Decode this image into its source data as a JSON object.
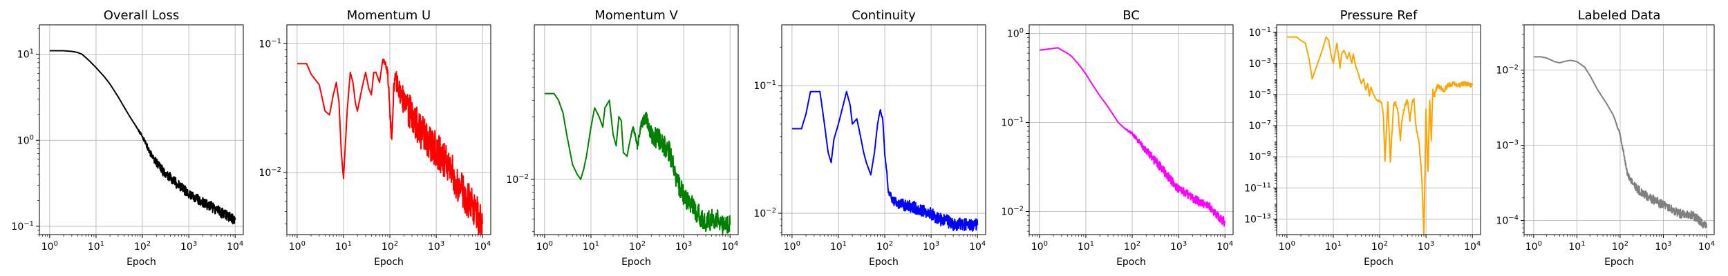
{
  "chart_data": [
    {
      "type": "line",
      "title": "Overall Loss",
      "xlabel": "Epoch",
      "xscale": "log",
      "yscale": "log",
      "xlim": [
        0.6,
        15000
      ],
      "ylim": [
        0.08,
        22
      ],
      "xticks": [
        "10^0",
        "10^1",
        "10^2",
        "10^3",
        "10^4"
      ],
      "yticks": [
        "10^-1",
        "10^0",
        "10^1"
      ],
      "grid": true,
      "series": [
        {
          "color": "#000000",
          "x": [
            1,
            2,
            3,
            4,
            5,
            7,
            10,
            15,
            20,
            30,
            50,
            70,
            100,
            120,
            150,
            200,
            300,
            500,
            700,
            1000,
            2000,
            3000,
            5000,
            7000,
            10000
          ],
          "y": [
            11,
            11,
            10.8,
            10.5,
            10,
            8.5,
            7,
            5.5,
            4.5,
            3.2,
            2.0,
            1.5,
            1.1,
            0.9,
            0.7,
            0.55,
            0.42,
            0.33,
            0.28,
            0.24,
            0.19,
            0.17,
            0.145,
            0.13,
            0.118
          ],
          "noise": 0.06
        }
      ]
    },
    {
      "type": "line",
      "title": "Momentum U",
      "xlabel": "Epoch",
      "xscale": "log",
      "yscale": "log",
      "xlim": [
        0.6,
        15000
      ],
      "ylim": [
        0.0033,
        0.14
      ],
      "xticks": [
        "10^0",
        "10^1",
        "10^2",
        "10^3",
        "10^4"
      ],
      "yticks": [
        "10^-2",
        "10^-1"
      ],
      "grid": true,
      "series": [
        {
          "color": "#ff0000",
          "x": [
            1,
            1.3,
            1.6,
            2,
            3,
            4,
            5,
            6,
            7,
            8,
            9,
            10,
            12,
            14,
            16,
            18,
            20,
            25,
            30,
            35,
            40,
            45,
            50,
            60,
            70,
            80,
            90,
            100,
            110,
            120,
            130,
            140,
            150,
            200,
            300,
            500,
            1000,
            2000,
            3000,
            5000,
            7000,
            10000
          ],
          "y": [
            0.07,
            0.07,
            0.07,
            0.058,
            0.048,
            0.03,
            0.028,
            0.04,
            0.05,
            0.035,
            0.014,
            0.009,
            0.03,
            0.06,
            0.05,
            0.035,
            0.03,
            0.045,
            0.06,
            0.045,
            0.04,
            0.06,
            0.06,
            0.05,
            0.075,
            0.07,
            0.06,
            0.03,
            0.018,
            0.04,
            0.06,
            0.05,
            0.045,
            0.035,
            0.028,
            0.02,
            0.015,
            0.011,
            0.008,
            0.006,
            0.005,
            0.004
          ],
          "noise": 0.14
        }
      ]
    },
    {
      "type": "line",
      "title": "Momentum V",
      "xlabel": "Epoch",
      "xscale": "log",
      "yscale": "log",
      "xlim": [
        0.6,
        15000
      ],
      "ylim": [
        0.0038,
        0.15
      ],
      "xticks": [
        "10^0",
        "10^1",
        "10^2",
        "10^3",
        "10^4"
      ],
      "yticks": [
        "10^-2"
      ],
      "grid": true,
      "series": [
        {
          "color": "#008000",
          "x": [
            1,
            1.3,
            1.6,
            2,
            2.5,
            3,
            4,
            5,
            6,
            7,
            8,
            10,
            12,
            15,
            18,
            20,
            25,
            30,
            35,
            40,
            45,
            50,
            60,
            70,
            80,
            90,
            100,
            120,
            150,
            200,
            300,
            500,
            700,
            1000,
            1500,
            2000,
            3000,
            5000,
            7000,
            10000
          ],
          "y": [
            0.045,
            0.045,
            0.045,
            0.04,
            0.032,
            0.022,
            0.013,
            0.011,
            0.01,
            0.012,
            0.015,
            0.025,
            0.035,
            0.03,
            0.025,
            0.035,
            0.04,
            0.022,
            0.018,
            0.03,
            0.028,
            0.016,
            0.015,
            0.02,
            0.025,
            0.022,
            0.018,
            0.025,
            0.03,
            0.022,
            0.02,
            0.016,
            0.01,
            0.0075,
            0.0065,
            0.0055,
            0.0048,
            0.005,
            0.0045,
            0.0045
          ],
          "noise": 0.08
        }
      ]
    },
    {
      "type": "line",
      "title": "Continuity",
      "xlabel": "Epoch",
      "xscale": "log",
      "yscale": "log",
      "xlim": [
        0.6,
        15000
      ],
      "ylim": [
        0.0068,
        0.3
      ],
      "xticks": [
        "10^0",
        "10^1",
        "10^2",
        "10^3",
        "10^4"
      ],
      "yticks": [
        "10^-2",
        "10^-1"
      ],
      "grid": true,
      "series": [
        {
          "color": "#0000ff",
          "x": [
            1,
            1.3,
            1.6,
            2,
            2.5,
            3,
            4,
            5,
            6,
            7,
            8,
            10,
            12,
            15,
            18,
            20,
            25,
            30,
            35,
            40,
            50,
            60,
            70,
            80,
            90,
            100,
            120,
            150,
            200,
            300,
            500,
            700,
            1000,
            1500,
            2000,
            3000,
            5000,
            7000,
            10000
          ],
          "y": [
            0.046,
            0.046,
            0.046,
            0.06,
            0.09,
            0.09,
            0.09,
            0.05,
            0.03,
            0.025,
            0.038,
            0.05,
            0.065,
            0.09,
            0.07,
            0.05,
            0.055,
            0.04,
            0.03,
            0.025,
            0.02,
            0.03,
            0.05,
            0.065,
            0.055,
            0.03,
            0.015,
            0.0125,
            0.012,
            0.0115,
            0.011,
            0.0105,
            0.01,
            0.009,
            0.0088,
            0.0082,
            0.0081,
            0.0081,
            0.0081
          ],
          "noise": 0.05
        }
      ]
    },
    {
      "type": "line",
      "title": "BC",
      "xlabel": "Epoch",
      "xscale": "log",
      "yscale": "log",
      "xlim": [
        0.6,
        15000
      ],
      "ylim": [
        0.0055,
        1.25
      ],
      "xticks": [
        "10^0",
        "10^1",
        "10^2",
        "10^3",
        "10^4"
      ],
      "yticks": [
        "10^-2",
        "10^-1",
        "10^0"
      ],
      "grid": true,
      "series": [
        {
          "color": "#ff00ff",
          "x": [
            1,
            1.3,
            1.6,
            2,
            2.5,
            3,
            4,
            5,
            7,
            10,
            15,
            20,
            30,
            50,
            70,
            100,
            150,
            200,
            300,
            500,
            700,
            1000,
            1500,
            2000,
            3000,
            5000,
            7000,
            10000
          ],
          "y": [
            0.65,
            0.66,
            0.67,
            0.68,
            0.69,
            0.65,
            0.6,
            0.55,
            0.45,
            0.35,
            0.25,
            0.2,
            0.15,
            0.1,
            0.085,
            0.075,
            0.058,
            0.048,
            0.038,
            0.028,
            0.022,
            0.018,
            0.016,
            0.014,
            0.0125,
            0.011,
            0.009,
            0.0075
          ],
          "noise": 0.05
        }
      ]
    },
    {
      "type": "line",
      "title": "Pressure Ref",
      "xlabel": "Epoch",
      "xscale": "log",
      "yscale": "log",
      "xlim": [
        0.6,
        15000
      ],
      "ylim": [
        1e-14,
        0.3
      ],
      "xticks": [
        "10^0",
        "10^1",
        "10^2",
        "10^3",
        "10^4"
      ],
      "yticks": [
        "10^-13",
        "10^-11",
        "10^-9",
        "10^-7",
        "10^-5",
        "10^-3",
        "10^-1"
      ],
      "grid": true,
      "series": [
        {
          "color": "#ffa500",
          "x": [
            1,
            1.3,
            1.6,
            2,
            2.5,
            3,
            3.5,
            4,
            5,
            6,
            7,
            8,
            9,
            10,
            11,
            12,
            13,
            14,
            15,
            17,
            20,
            22,
            25,
            27,
            30,
            35,
            40,
            45,
            50,
            55,
            60,
            65,
            70,
            80,
            90,
            100,
            110,
            120,
            130,
            150,
            170,
            200,
            220,
            250,
            280,
            300,
            350,
            400,
            450,
            500,
            550,
            600,
            700,
            800,
            850,
            900,
            950,
            1000,
            1100,
            1200,
            1300,
            1400,
            1500,
            1700,
            2000,
            2500,
            3000,
            4000,
            5000,
            7000,
            10000
          ],
          "y": [
            0.05,
            0.05,
            0.05,
            0.03,
            0.02,
            0.002,
            0.0001,
            0.0003,
            0.002,
            0.01,
            0.05,
            0.03,
            0.003,
            0.001,
            0.005,
            0.02,
            0.003,
            0.0005,
            0.004,
            0.007,
            0.002,
            0.005,
            0.001,
            0.004,
            0.0008,
            0.0002,
            5e-05,
            0.0001,
            2e-05,
            5e-05,
            8e-06,
            3e-05,
            1.5e-05,
            6e-06,
            4e-06,
            4e-06,
            3e-06,
            6e-07,
            5e-10,
            4e-06,
            5e-10,
            2e-06,
            3e-06,
            8e-07,
            1e-08,
            2e-07,
            2e-06,
            4e-06,
            2e-07,
            3e-06,
            5e-06,
            1e-07,
            1e-08,
            1e-10,
            1e-12,
            1e-14,
            1e-10,
            1e-06,
            1e-10,
            5e-06,
            1e-08,
            2e-05,
            8e-06,
            3e-05,
            3e-05,
            2e-05,
            4e-05,
            5e-05,
            4e-05,
            5e-05,
            4e-05
          ],
          "noise": 0.15
        }
      ]
    },
    {
      "type": "line",
      "title": "Labeled Data",
      "xlabel": "Epoch",
      "xscale": "log",
      "yscale": "log",
      "xlim": [
        0.6,
        15000
      ],
      "ylim": [
        6.5e-05,
        0.04
      ],
      "xticks": [
        "10^0",
        "10^1",
        "10^2",
        "10^3",
        "10^4"
      ],
      "yticks": [
        "10^-4",
        "10^-3",
        "10^-2"
      ],
      "grid": true,
      "series": [
        {
          "color": "#808080",
          "x": [
            1,
            1.5,
            2,
            3,
            4,
            5,
            7,
            10,
            15,
            20,
            30,
            50,
            70,
            100,
            120,
            150,
            200,
            300,
            500,
            700,
            1000,
            1500,
            2000,
            3000,
            5000,
            7000,
            10000
          ],
          "y": [
            0.015,
            0.015,
            0.0145,
            0.013,
            0.0125,
            0.013,
            0.0135,
            0.013,
            0.011,
            0.0085,
            0.0055,
            0.0035,
            0.0025,
            0.0014,
            0.0008,
            0.0004,
            0.0003,
            0.00024,
            0.0002,
            0.00018,
            0.00016,
            0.00014,
            0.00013,
            0.00012,
            0.000115,
            0.0001,
            8e-05
          ],
          "noise": 0.06
        }
      ]
    }
  ]
}
